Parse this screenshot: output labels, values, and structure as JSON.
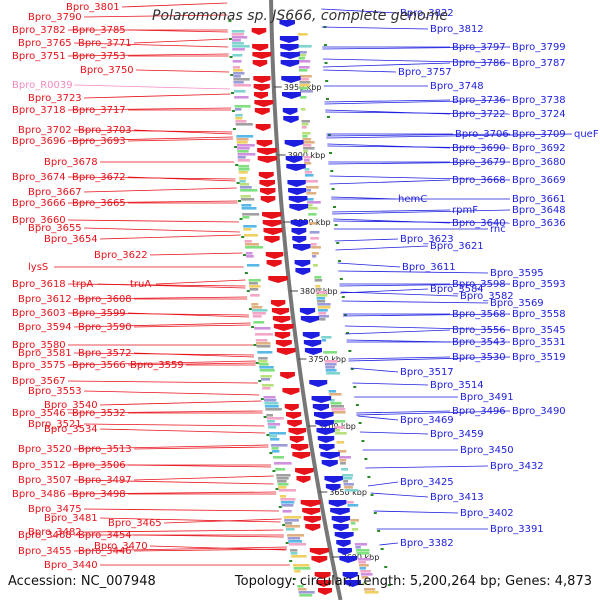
{
  "title": "Polaromonas sp. JS666, complete genome",
  "footer": {
    "accession": "Accession: NC_007948",
    "summary": "Topology: circular; Length: 5,200,264 bp; Genes: 4,873"
  },
  "colors": {
    "forward": "#e8121a",
    "reverse": "#1e1ee0",
    "rna": "#f48ac0",
    "ruler": "#777777",
    "tick": "#2a8a2a"
  },
  "kbp_marks": [
    "3950 kbp",
    "3900 kbp",
    "3850 kbp",
    "3800 kbp",
    "3750 kbp",
    "3700 kbp",
    "3650 kbp",
    "3600 kbp"
  ],
  "left_labels": [
    {
      "t": "Bpro_3801"
    },
    {
      "t": "Bpro_3790"
    },
    {
      "t": "Bpro_3782"
    },
    {
      "t": "Bpro_3785"
    },
    {
      "t": "Bpro_3765"
    },
    {
      "t": "Bpro_3771"
    },
    {
      "t": "Bpro_3751"
    },
    {
      "t": "Bpro_3753"
    },
    {
      "t": "Bpro_3750"
    },
    {
      "t": "Bpro_R0039",
      "rna": true
    },
    {
      "t": "Bpro_3723"
    },
    {
      "t": "Bpro_3718"
    },
    {
      "t": "Bpro_3717"
    },
    {
      "t": "Bpro_3702"
    },
    {
      "t": "Bpro_3703"
    },
    {
      "t": "Bpro_3696"
    },
    {
      "t": "Bpro_3693"
    },
    {
      "t": "Bpro_3678"
    },
    {
      "t": "Bpro_3674"
    },
    {
      "t": "Bpro_3672"
    },
    {
      "t": "Bpro_3667"
    },
    {
      "t": "Bpro_3666"
    },
    {
      "t": "Bpro_3665"
    },
    {
      "t": "Bpro_3660"
    },
    {
      "t": "Bpro_3655"
    },
    {
      "t": "Bpro_3654"
    },
    {
      "t": "Bpro_3622"
    },
    {
      "t": "lysS"
    },
    {
      "t": "Bpro_3618"
    },
    {
      "t": "trpA"
    },
    {
      "t": "truA"
    },
    {
      "t": "Bpro_3612"
    },
    {
      "t": "Bpro_3608"
    },
    {
      "t": "Bpro_3603"
    },
    {
      "t": "Bpro_3599"
    },
    {
      "t": "Bpro_3594"
    },
    {
      "t": "Bpro_3590"
    },
    {
      "t": "Bpro_3580"
    },
    {
      "t": "Bpro_3581"
    },
    {
      "t": "Bpro_3572"
    },
    {
      "t": "Bpro_3575"
    },
    {
      "t": "Bpro_3566"
    },
    {
      "t": "Bpro_3559"
    },
    {
      "t": "Bpro_3567"
    },
    {
      "t": "Bpro_3553"
    },
    {
      "t": "Bpro_3540"
    },
    {
      "t": "Bpro_3546"
    },
    {
      "t": "Bpro_3532"
    },
    {
      "t": "Bpro_3521"
    },
    {
      "t": "Bpro_3534"
    },
    {
      "t": "Bpro_3520"
    },
    {
      "t": "Bpro_3513"
    },
    {
      "t": "Bpro_3512"
    },
    {
      "t": "Bpro_3506"
    },
    {
      "t": "Bpro_3507"
    },
    {
      "t": "Bpro_3497"
    },
    {
      "t": "Bpro_3486"
    },
    {
      "t": "Bpro_3498"
    },
    {
      "t": "Bpro_3475"
    },
    {
      "t": "Bpro_3481"
    },
    {
      "t": "Bpro_3465"
    },
    {
      "t": "Bpro_3482"
    },
    {
      "t": "Bpro_3468"
    },
    {
      "t": "Bpro_3454"
    },
    {
      "t": "Bpro_3470"
    },
    {
      "t": "Bpro_3455"
    },
    {
      "t": "Bpro_3446"
    },
    {
      "t": "Bpro_3440"
    }
  ],
  "right_labels": [
    {
      "t": "Bpro_3822"
    },
    {
      "t": "Bpro_3812"
    },
    {
      "t": "Bpro_3797"
    },
    {
      "t": "Bpro_3799"
    },
    {
      "t": "Bpro_3786"
    },
    {
      "t": "Bpro_3787"
    },
    {
      "t": "Bpro_3757"
    },
    {
      "t": "Bpro_3748"
    },
    {
      "t": "Bpro_3736"
    },
    {
      "t": "Bpro_3738"
    },
    {
      "t": "Bpro_3722"
    },
    {
      "t": "Bpro_3724"
    },
    {
      "t": "Bpro_3706"
    },
    {
      "t": "Bpro_3709"
    },
    {
      "t": "queF"
    },
    {
      "t": "Bpro_3690"
    },
    {
      "t": "Bpro_3692"
    },
    {
      "t": "Bpro_3679"
    },
    {
      "t": "Bpro_3680"
    },
    {
      "t": "Bpro_3668"
    },
    {
      "t": "Bpro_3669"
    },
    {
      "t": "hemC"
    },
    {
      "t": "Bpro_3661"
    },
    {
      "t": "rpmF"
    },
    {
      "t": "Bpro_3648"
    },
    {
      "t": "Bpro_3640"
    },
    {
      "t": "Bpro_3636"
    },
    {
      "t": "rnc"
    },
    {
      "t": "Bpro_3623"
    },
    {
      "t": "Bpro_3621"
    },
    {
      "t": "Bpro_3611"
    },
    {
      "t": "Bpro_3595"
    },
    {
      "t": "Bpro_3598"
    },
    {
      "t": "Bpro_3593"
    },
    {
      "t": "Bpro_3584"
    },
    {
      "t": "Bpro_3582"
    },
    {
      "t": "Bpro_3569"
    },
    {
      "t": "Bpro_3568"
    },
    {
      "t": "Bpro_3558"
    },
    {
      "t": "Bpro_3556"
    },
    {
      "t": "Bpro_3545"
    },
    {
      "t": "Bpro_3543"
    },
    {
      "t": "Bpro_3531"
    },
    {
      "t": "Bpro_3530"
    },
    {
      "t": "Bpro_3519"
    },
    {
      "t": "Bpro_3517"
    },
    {
      "t": "Bpro_3514"
    },
    {
      "t": "Bpro_3491"
    },
    {
      "t": "Bpro_3496"
    },
    {
      "t": "Bpro_3490"
    },
    {
      "t": "Bpro_3469"
    },
    {
      "t": "Bpro_3459"
    },
    {
      "t": "Bpro_3450"
    },
    {
      "t": "Bpro_3432"
    },
    {
      "t": "Bpro_3425"
    },
    {
      "t": "Bpro_3413"
    },
    {
      "t": "Bpro_3402"
    },
    {
      "t": "Bpro_3391"
    },
    {
      "t": "Bpro_3382"
    }
  ]
}
